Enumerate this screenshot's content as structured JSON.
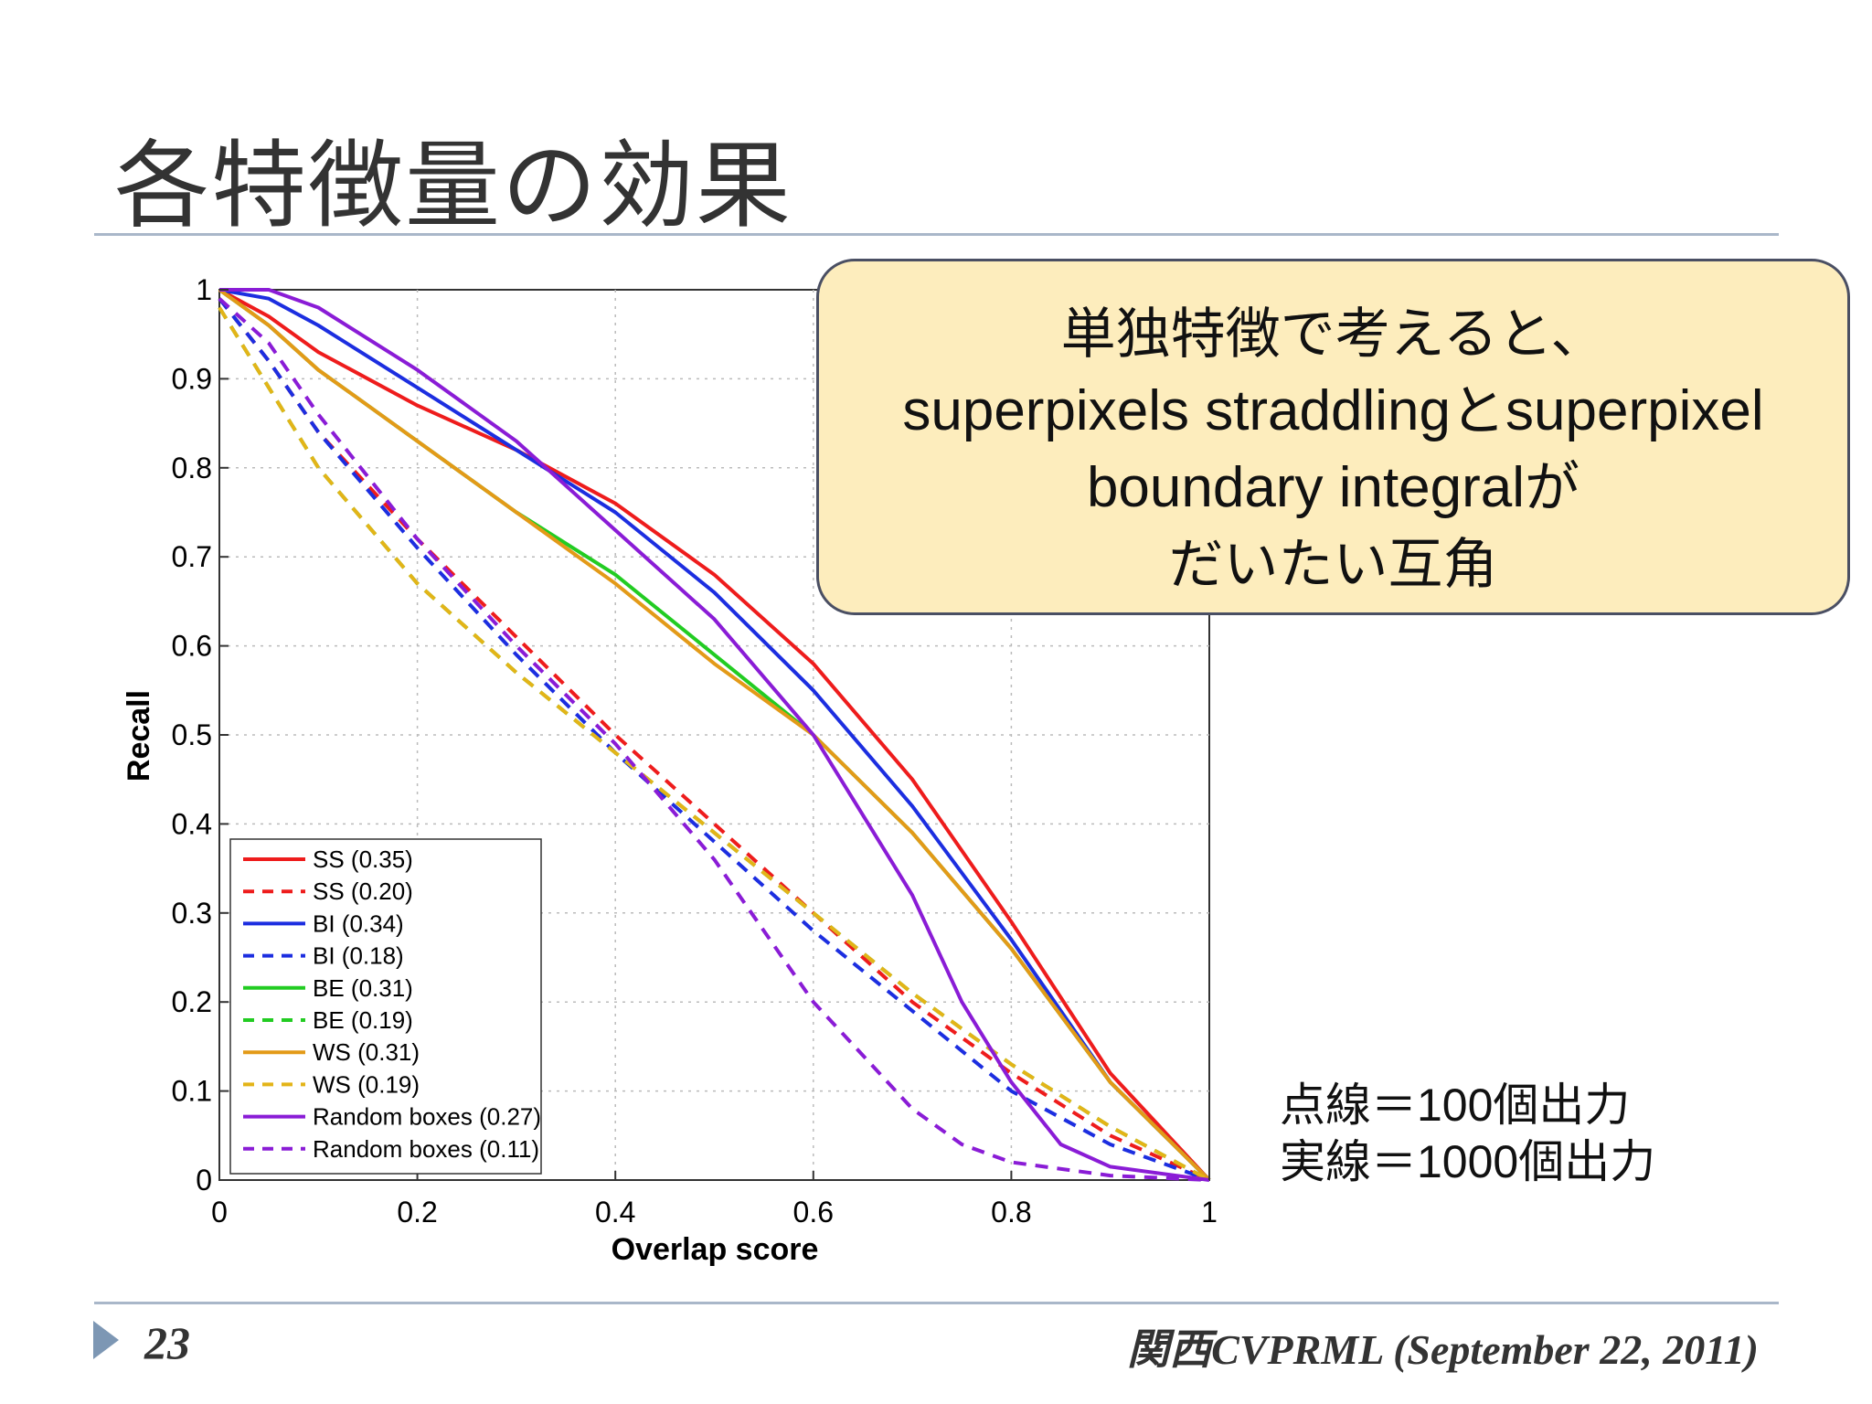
{
  "slide": {
    "title": "各特徴量の効果",
    "page_number": "23",
    "footer": "関西CVPRML (September 22, 2011)"
  },
  "callout": {
    "line1": "単独特徴で考えると、",
    "line2a": "superpixels straddling",
    "line2b": "と",
    "line2c": "superpixel",
    "line3a": "boundary integral",
    "line3b": "が",
    "line4": "だいたい互角"
  },
  "note": {
    "line1": "点線＝100個出力",
    "line2": "実線＝1000個出力"
  },
  "chart_data": {
    "type": "line",
    "title": "",
    "xlabel": "Overlap score",
    "ylabel": "Recall",
    "xlim": [
      0,
      1
    ],
    "ylim": [
      0,
      1
    ],
    "xticks": [
      0,
      0.2,
      0.4,
      0.6,
      0.8,
      1
    ],
    "xtick_labels": [
      "0",
      "0.2",
      "0.4",
      "0.6",
      "0.8",
      "1"
    ],
    "yticks": [
      0,
      0.1,
      0.2,
      0.3,
      0.4,
      0.5,
      0.6,
      0.7,
      0.8,
      0.9,
      1
    ],
    "ytick_labels": [
      "0",
      "0.1",
      "0.2",
      "0.3",
      "0.4",
      "0.5",
      "0.6",
      "0.7",
      "0.8",
      "0.9",
      "1"
    ],
    "grid": true,
    "legend_position": "bottom-left",
    "series": [
      {
        "name": "SS (0.35)",
        "color": "#ee1c1c",
        "style": "solid",
        "x": [
          0,
          0.05,
          0.1,
          0.2,
          0.3,
          0.4,
          0.5,
          0.6,
          0.7,
          0.8,
          0.9,
          1
        ],
        "y": [
          1,
          0.97,
          0.93,
          0.87,
          0.82,
          0.76,
          0.68,
          0.58,
          0.45,
          0.29,
          0.12,
          0
        ]
      },
      {
        "name": "SS (0.20)",
        "color": "#ee1c1c",
        "style": "dashed",
        "x": [
          0,
          0.05,
          0.1,
          0.2,
          0.3,
          0.4,
          0.5,
          0.6,
          0.7,
          0.8,
          0.9,
          1
        ],
        "y": [
          0.99,
          0.92,
          0.84,
          0.72,
          0.61,
          0.5,
          0.4,
          0.3,
          0.2,
          0.12,
          0.05,
          0
        ]
      },
      {
        "name": "BI (0.34)",
        "color": "#1c2ee0",
        "style": "solid",
        "x": [
          0,
          0.05,
          0.1,
          0.2,
          0.3,
          0.4,
          0.5,
          0.6,
          0.7,
          0.8,
          0.9,
          1
        ],
        "y": [
          1,
          0.99,
          0.96,
          0.89,
          0.82,
          0.75,
          0.66,
          0.55,
          0.42,
          0.27,
          0.11,
          0
        ]
      },
      {
        "name": "BI (0.18)",
        "color": "#1c2ee0",
        "style": "dashed",
        "x": [
          0,
          0.05,
          0.1,
          0.2,
          0.3,
          0.4,
          0.5,
          0.6,
          0.7,
          0.8,
          0.9,
          1
        ],
        "y": [
          0.99,
          0.92,
          0.84,
          0.71,
          0.59,
          0.48,
          0.38,
          0.28,
          0.19,
          0.1,
          0.04,
          0
        ]
      },
      {
        "name": "BE (0.31)",
        "color": "#22cc22",
        "style": "solid",
        "x": [
          0,
          0.05,
          0.1,
          0.2,
          0.3,
          0.4,
          0.5,
          0.6,
          0.7,
          0.8,
          0.9,
          1
        ],
        "y": [
          1,
          0.96,
          0.91,
          0.83,
          0.75,
          0.68,
          0.59,
          0.5,
          0.39,
          0.26,
          0.11,
          0
        ]
      },
      {
        "name": "BE (0.19)",
        "color": "#22cc22",
        "style": "dashed",
        "x": [
          0,
          0.05,
          0.1,
          0.2,
          0.3,
          0.4,
          0.5,
          0.6,
          0.7,
          0.8,
          0.9,
          1
        ],
        "y": [
          0.98,
          0.89,
          0.8,
          0.67,
          0.57,
          0.48,
          0.39,
          0.3,
          0.21,
          0.13,
          0.06,
          0
        ]
      },
      {
        "name": "WS (0.31)",
        "color": "#e39a18",
        "style": "solid",
        "x": [
          0,
          0.05,
          0.1,
          0.2,
          0.3,
          0.4,
          0.5,
          0.6,
          0.7,
          0.8,
          0.9,
          1
        ],
        "y": [
          1,
          0.96,
          0.91,
          0.83,
          0.75,
          0.67,
          0.58,
          0.5,
          0.39,
          0.26,
          0.11,
          0
        ]
      },
      {
        "name": "WS (0.19)",
        "color": "#e3b418",
        "style": "dashed",
        "x": [
          0,
          0.05,
          0.1,
          0.2,
          0.3,
          0.4,
          0.5,
          0.6,
          0.7,
          0.8,
          0.9,
          1
        ],
        "y": [
          0.98,
          0.89,
          0.8,
          0.67,
          0.57,
          0.48,
          0.39,
          0.3,
          0.21,
          0.13,
          0.06,
          0
        ]
      },
      {
        "name": "Random boxes (0.27)",
        "color": "#8a1cd6",
        "style": "solid",
        "x": [
          0,
          0.05,
          0.1,
          0.2,
          0.3,
          0.4,
          0.5,
          0.6,
          0.7,
          0.75,
          0.8,
          0.85,
          0.9,
          1
        ],
        "y": [
          1,
          1,
          0.98,
          0.91,
          0.83,
          0.73,
          0.63,
          0.5,
          0.32,
          0.2,
          0.11,
          0.04,
          0.015,
          0
        ]
      },
      {
        "name": "Random boxes (0.11)",
        "color": "#8a1cd6",
        "style": "dashed",
        "x": [
          0,
          0.05,
          0.1,
          0.2,
          0.3,
          0.4,
          0.5,
          0.6,
          0.65,
          0.7,
          0.75,
          0.8,
          0.9,
          1
        ],
        "y": [
          0.99,
          0.94,
          0.86,
          0.72,
          0.6,
          0.49,
          0.36,
          0.2,
          0.14,
          0.08,
          0.04,
          0.02,
          0.005,
          0
        ]
      }
    ]
  }
}
